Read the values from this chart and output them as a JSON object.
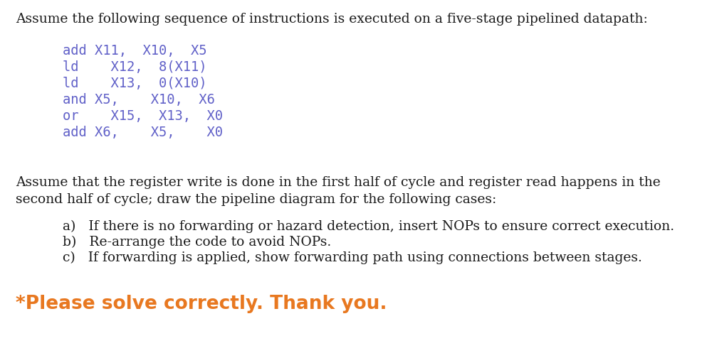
{
  "bg_color": "#ffffff",
  "title_text": "Assume the following sequence of instructions is executed on a five-stage pipelined datapath:",
  "code_lines": [
    "add X11,  X10,  X5",
    "ld   X12,  8(X11)",
    "ld   X13,  0(X10)",
    "and X5,   X10,  X6",
    "or   X15,  X13,  X0",
    "add X6,   X5,    X0"
  ],
  "para_line1": "Assume that the register write is done in the first half of cycle and register read happens in the",
  "para_line2": "second half of cycle; draw the pipeline diagram for the following cases:",
  "items": [
    "a)   If there is no forwarding or hazard detection, insert NOPs to ensure correct execution.",
    "b)   Re-arrange the code to avoid NOPs.",
    "c)   If forwarding is applied, show forwarding path using connections between stages."
  ],
  "footer": "*Please solve correctly. Thank you.",
  "title_fontsize": 13.5,
  "code_fontsize": 13.5,
  "para_fontsize": 13.5,
  "item_fontsize": 13.5,
  "footer_fontsize": 19,
  "code_color": "#6060c8",
  "normal_color": "#1a1a1a",
  "footer_color": "#e87820",
  "fig_width": 9.86,
  "fig_height": 4.97,
  "dpi": 100
}
